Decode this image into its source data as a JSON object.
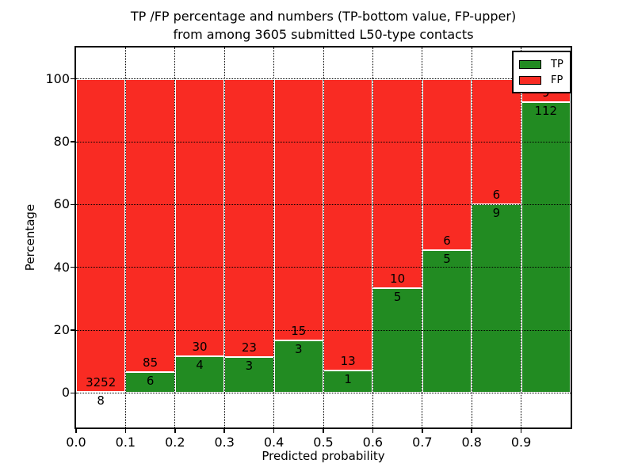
{
  "chart_data": {
    "type": "bar",
    "stacked": true,
    "normalized_to_percent": true,
    "title_line1": "TP /FP percentage and numbers (TP-bottom value, FP-upper)",
    "title_line2": "from among 3605 submitted L50-type contacts",
    "xlabel": "Predicted probability",
    "ylabel": "Percentage",
    "bin_edges": [
      0.0,
      0.1,
      0.2,
      0.3,
      0.4,
      0.5,
      0.6,
      0.7,
      0.8,
      0.9,
      1.0
    ],
    "categories": [
      "0.0-0.1",
      "0.1-0.2",
      "0.2-0.3",
      "0.3-0.4",
      "0.4-0.5",
      "0.5-0.6",
      "0.6-0.7",
      "0.7-0.8",
      "0.8-0.9",
      "0.9-1.0"
    ],
    "series": [
      {
        "name": "TP",
        "color": "#228b22",
        "values": [
          8,
          6,
          4,
          3,
          3,
          1,
          5,
          5,
          9,
          112
        ]
      },
      {
        "name": "FP",
        "color": "#f92b23",
        "values": [
          3252,
          85,
          30,
          23,
          15,
          13,
          10,
          6,
          6,
          9
        ]
      }
    ],
    "percent_tp": [
      0.25,
      6.59,
      11.76,
      11.54,
      16.67,
      7.14,
      33.33,
      45.45,
      60.0,
      92.56
    ],
    "xticks": [
      "0.0",
      "0.1",
      "0.2",
      "0.3",
      "0.4",
      "0.5",
      "0.6",
      "0.7",
      "0.8",
      "0.9"
    ],
    "yticks": [
      0,
      20,
      40,
      60,
      80,
      100
    ],
    "xlim": [
      0.0,
      1.0
    ],
    "ylim": [
      -11,
      110
    ],
    "grid": true,
    "grid_style": "dotted",
    "bar_edge_color": "#ffffff",
    "legend_position": "upper right",
    "legend_entries": [
      "TP",
      "FP"
    ]
  }
}
